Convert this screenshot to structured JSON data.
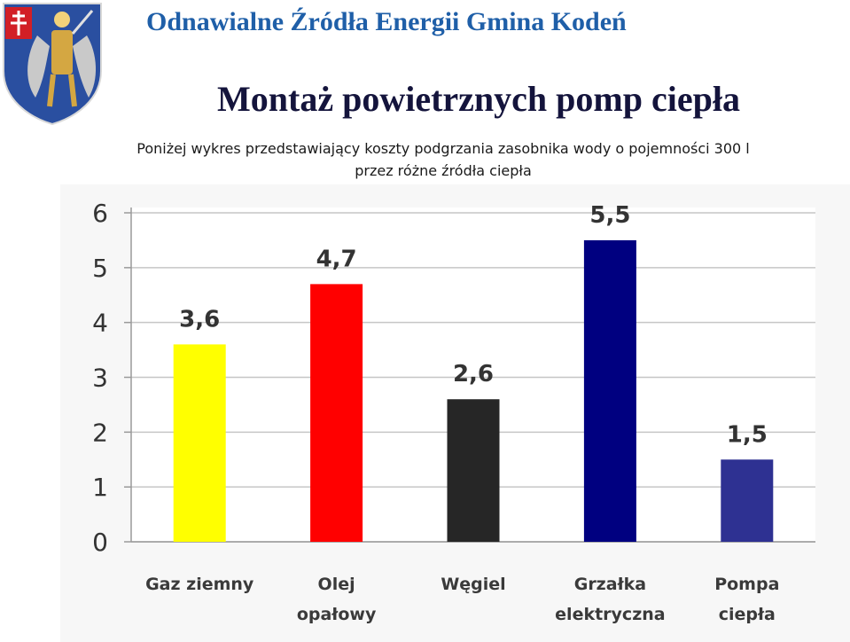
{
  "header": {
    "municipality_title": "Odnawialne Źródła Energii Gmina Kodeń"
  },
  "slide": {
    "title": "Montaż powietrznych pomp ciepła",
    "caption_line1": "Poniżej wykres przedstawiający koszty podgrzania zasobnika wody o pojemności 300 l",
    "caption_line2": "przez różne źródła ciepła"
  },
  "chart_data": {
    "type": "bar",
    "title": "",
    "xlabel": "",
    "ylabel": "",
    "ylim": [
      0,
      6
    ],
    "yticks": [
      "0",
      "1",
      "2",
      "3",
      "4",
      "5",
      "6"
    ],
    "grid": true,
    "legend": "none",
    "categories": [
      [
        "Gaz ziemny"
      ],
      [
        "Olej",
        "opałowy"
      ],
      [
        "Węgiel"
      ],
      [
        "Grzałka",
        "elektryczna"
      ],
      [
        "Pompa",
        "ciepła"
      ]
    ],
    "values": [
      3.6,
      4.7,
      2.6,
      5.5,
      1.5
    ],
    "value_labels": [
      "3,6",
      "4,7",
      "2,6",
      "5,5",
      "1,5"
    ],
    "colors": [
      "#ffff00",
      "#ff0000",
      "#262626",
      "#000080",
      "#2e3192"
    ]
  }
}
